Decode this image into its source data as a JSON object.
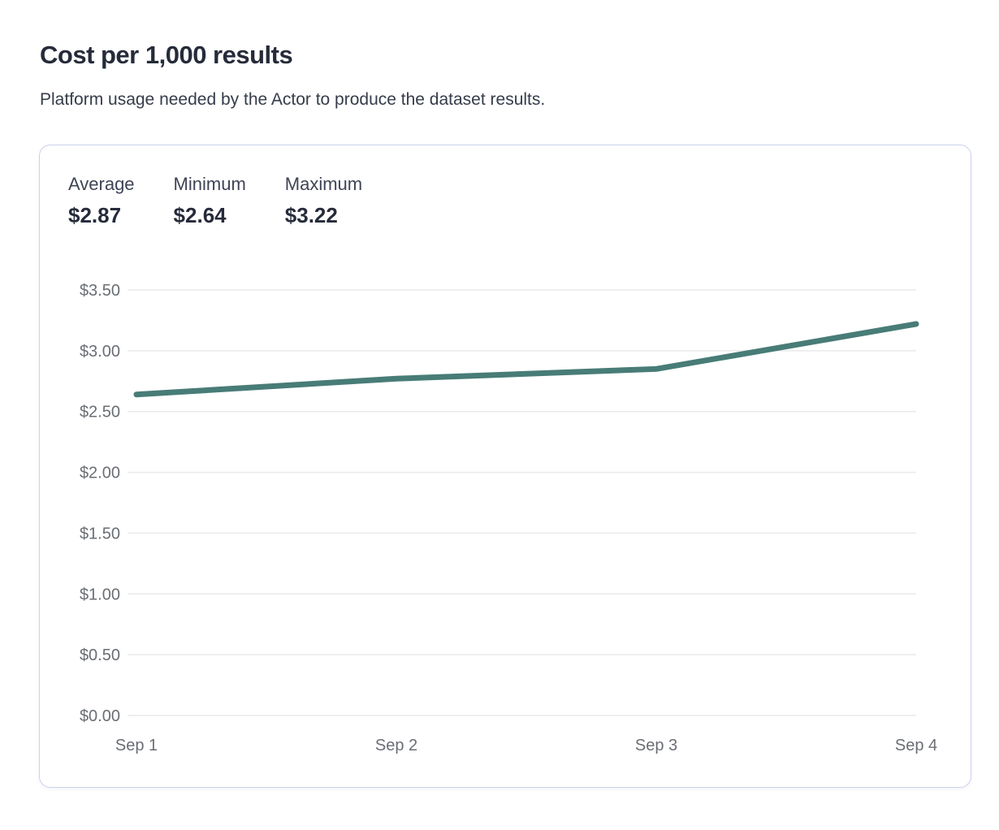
{
  "page": {
    "title": "Cost per 1,000 results",
    "subtitle": "Platform usage needed by the Actor to produce the dataset results."
  },
  "stats": [
    {
      "label": "Average",
      "value": "$2.87"
    },
    {
      "label": "Minimum",
      "value": "$2.64"
    },
    {
      "label": "Maximum",
      "value": "$3.22"
    }
  ],
  "chart_data": {
    "type": "line",
    "title": "Cost per 1,000 results",
    "categories": [
      "Sep 1",
      "Sep 2",
      "Sep 3",
      "Sep 4"
    ],
    "series": [
      {
        "name": "Cost per 1,000 results",
        "values": [
          2.64,
          2.77,
          2.85,
          3.22
        ]
      }
    ],
    "xlabel": "",
    "ylabel": "",
    "ylim": [
      0,
      3.5
    ],
    "y_ticks": [
      {
        "value": 3.5,
        "label": "$3.50"
      },
      {
        "value": 3.0,
        "label": "$3.00"
      },
      {
        "value": 2.5,
        "label": "$2.50"
      },
      {
        "value": 2.0,
        "label": "$2.00"
      },
      {
        "value": 1.5,
        "label": "$1.50"
      },
      {
        "value": 1.0,
        "label": "$1.00"
      },
      {
        "value": 0.5,
        "label": "$0.50"
      },
      {
        "value": 0.0,
        "label": "$0.00"
      }
    ],
    "grid": true,
    "legend": "none",
    "colors": {
      "line": "#487c77",
      "grid": "#e9eaec",
      "tick_label": "#6a6e74"
    }
  }
}
